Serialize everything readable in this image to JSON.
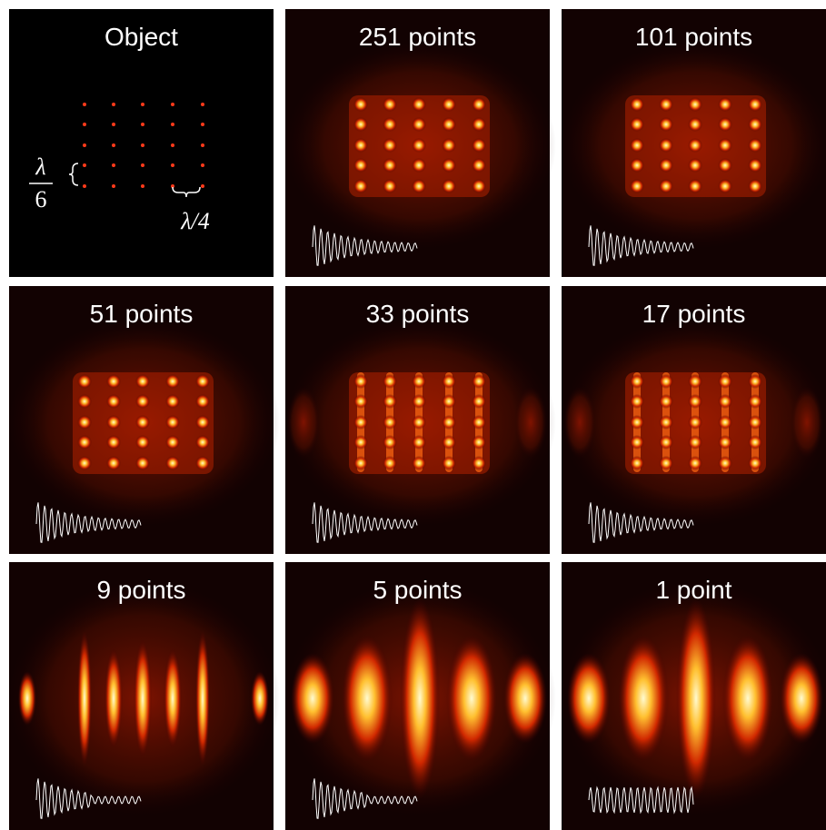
{
  "panels": [
    {
      "title": "Object"
    },
    {
      "title": "251 points"
    },
    {
      "title": "101 points"
    },
    {
      "title": "51 points"
    },
    {
      "title": "33 points"
    },
    {
      "title": "17 points"
    },
    {
      "title": "9 points"
    },
    {
      "title": "5 points"
    },
    {
      "title": "1 point"
    }
  ],
  "annotations": {
    "vertical_spacing": {
      "numerator": "λ",
      "denominator": "6"
    },
    "horizontal_spacing": "λ/4"
  }
}
